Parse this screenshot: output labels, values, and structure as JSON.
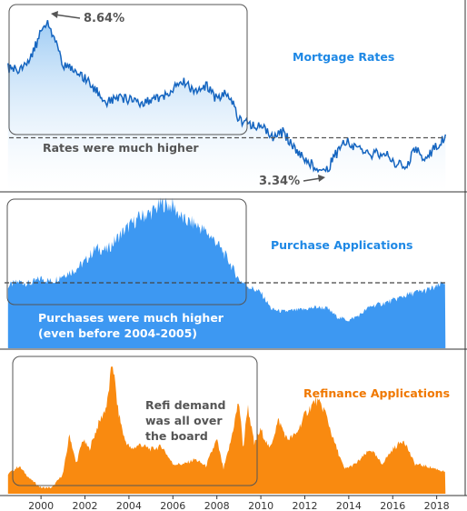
{
  "chart_data": [
    {
      "type": "line",
      "title": "Mortgage Rates",
      "title_color": "#1e88e5",
      "color": "#1565c0",
      "fill": "#90c4f0",
      "x": [
        1998.5,
        1999.0,
        1999.5,
        2000.0,
        2000.3,
        2000.6,
        2001.0,
        2001.5,
        2002.0,
        2002.5,
        2003.0,
        2003.5,
        2004.0,
        2004.5,
        2005.0,
        2005.5,
        2006.0,
        2006.5,
        2007.0,
        2007.5,
        2008.0,
        2008.5,
        2009.0,
        2009.5,
        2010.0,
        2010.5,
        2011.0,
        2011.5,
        2012.0,
        2012.5,
        2012.9,
        2013.3,
        2013.8,
        2014.3,
        2015.0,
        2015.6,
        2016.2,
        2016.6,
        2017.0,
        2017.5,
        2018.0,
        2018.4
      ],
      "values": [
        7.0,
        6.9,
        7.3,
        8.2,
        8.64,
        8.0,
        7.1,
        6.9,
        6.6,
        6.2,
        5.8,
        6.0,
        5.9,
        5.8,
        5.9,
        6.0,
        6.3,
        6.5,
        6.2,
        6.4,
        5.9,
        6.2,
        5.2,
        5.1,
        5.0,
        4.6,
        4.8,
        4.3,
        3.9,
        3.6,
        3.34,
        3.9,
        4.5,
        4.3,
        4.0,
        4.1,
        3.7,
        3.6,
        4.2,
        3.9,
        4.3,
        4.6
      ],
      "annotations": {
        "high_label": "8.64%",
        "low_label": "3.34%",
        "note": "Rates were much higher",
        "note_color": "#555555"
      },
      "reference_line": 4.6
    },
    {
      "type": "area",
      "title": "Purchase Applications",
      "title_color": "#1e88e5",
      "color": "#3d98f2",
      "x": [
        1998.5,
        1999.0,
        1999.5,
        2000.0,
        2000.5,
        2001.0,
        2001.5,
        2002.0,
        2002.5,
        2003.0,
        2003.5,
        2004.0,
        2004.5,
        2005.0,
        2005.5,
        2006.0,
        2006.5,
        2007.0,
        2007.5,
        2008.0,
        2008.5,
        2009.0,
        2009.5,
        2010.0,
        2010.5,
        2011.0,
        2012.0,
        2012.5,
        2013.0,
        2013.5,
        2014.0,
        2014.5,
        2015.0,
        2015.5,
        2016.0,
        2016.5,
        2017.0,
        2017.5,
        2018.0,
        2018.4
      ],
      "values": [
        0.56,
        0.6,
        0.58,
        0.63,
        0.6,
        0.66,
        0.7,
        0.78,
        0.9,
        0.88,
        1.0,
        1.1,
        1.18,
        1.22,
        1.3,
        1.28,
        1.15,
        1.12,
        1.05,
        0.95,
        0.8,
        0.62,
        0.55,
        0.5,
        0.35,
        0.33,
        0.35,
        0.37,
        0.36,
        0.28,
        0.25,
        0.3,
        0.38,
        0.4,
        0.43,
        0.47,
        0.5,
        0.52,
        0.55,
        0.6
      ],
      "annotations": {
        "note_line1": "Purchases were much higher",
        "note_line2": "(even before  2004-2005)",
        "note_color": "#ffffff"
      },
      "reference_line": 0.6
    },
    {
      "type": "area",
      "title": "Refinance Applications",
      "title_color": "#f07800",
      "color": "#f98a10",
      "x": [
        1998.5,
        1999.0,
        1999.5,
        2000.0,
        2000.5,
        2001.0,
        2001.3,
        2001.6,
        2001.9,
        2002.2,
        2002.6,
        2003.0,
        2003.25,
        2003.5,
        2003.8,
        2004.1,
        2004.5,
        2005.0,
        2005.5,
        2006.0,
        2006.5,
        2007.0,
        2007.5,
        2008.0,
        2008.3,
        2008.6,
        2009.0,
        2009.2,
        2009.4,
        2009.7,
        2010.0,
        2010.4,
        2010.8,
        2011.2,
        2011.6,
        2012.0,
        2012.5,
        2012.9,
        2013.3,
        2013.8,
        2014.3,
        2015.0,
        2015.5,
        2016.0,
        2016.5,
        2017.0,
        2017.5,
        2018.0,
        2018.4
      ],
      "values": [
        0.2,
        0.28,
        0.15,
        0.06,
        0.06,
        0.2,
        0.6,
        0.3,
        0.55,
        0.45,
        0.7,
        0.9,
        1.35,
        0.85,
        0.55,
        0.45,
        0.5,
        0.45,
        0.48,
        0.3,
        0.3,
        0.35,
        0.28,
        0.55,
        0.25,
        0.5,
        0.95,
        0.45,
        0.9,
        0.5,
        0.65,
        0.45,
        0.75,
        0.55,
        0.6,
        0.8,
        0.95,
        0.85,
        0.55,
        0.25,
        0.3,
        0.45,
        0.3,
        0.45,
        0.55,
        0.3,
        0.28,
        0.25,
        0.22
      ],
      "annotations": {
        "note_line1": "Refi demand",
        "note_line2": "was all over",
        "note_line3": "the board",
        "note_color": "#555555"
      }
    }
  ],
  "x_ticks": [
    "2000",
    "2002",
    "2004",
    "2006",
    "2008",
    "2010",
    "2012",
    "2014",
    "2016",
    "2018"
  ],
  "x_tick_values": [
    2000,
    2002,
    2004,
    2006,
    2008,
    2010,
    2012,
    2014,
    2016,
    2018
  ],
  "x_range": [
    1998.3,
    2018.8
  ],
  "grid": false
}
